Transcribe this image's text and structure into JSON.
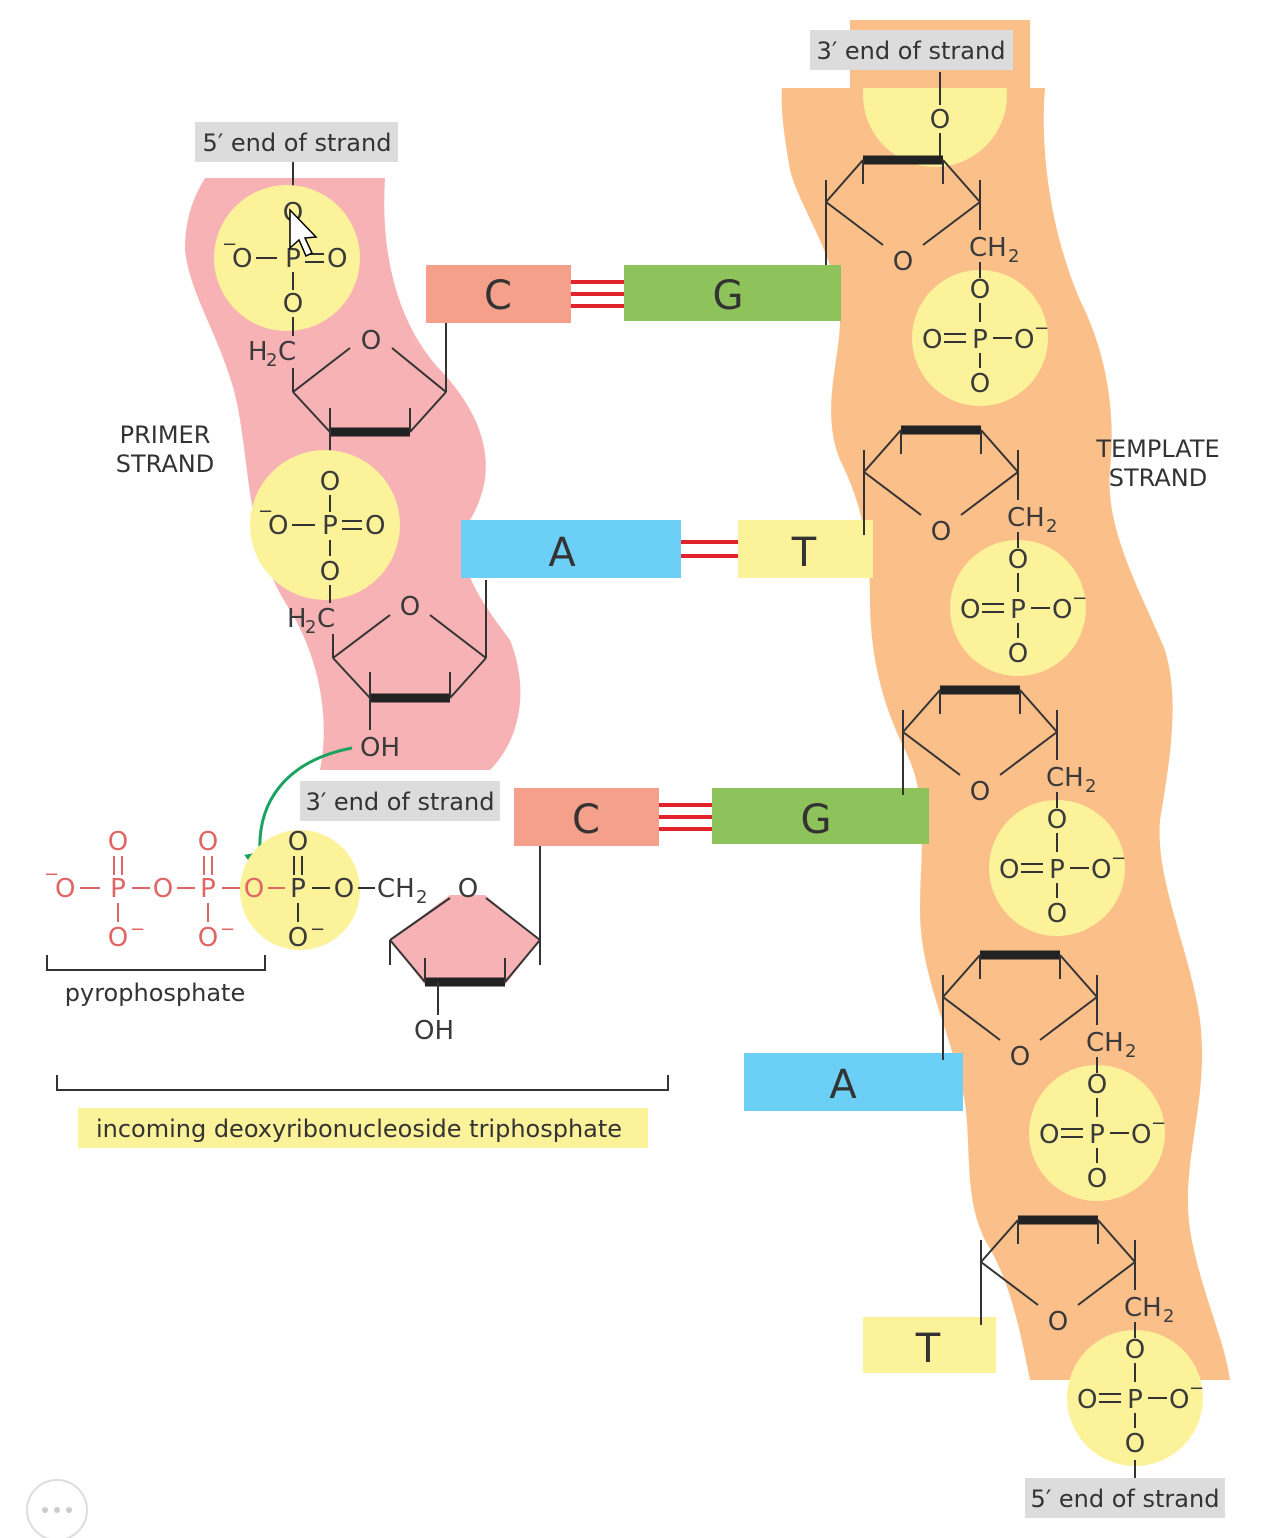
{
  "labels": {
    "primer_5end": "5′ end of strand",
    "template_3end": "3′ end of strand",
    "primer_3end": "3′ end of strand",
    "template_5end": "5′ end of strand",
    "primer_strand_line1": "PRIMER",
    "primer_strand_line2": "STRAND",
    "template_strand_line1": "TEMPLATE",
    "template_strand_line2": "STRAND",
    "pyrophosphate": "pyrophosphate",
    "incoming": "incoming deoxyribonucleoside triphosphate"
  },
  "atoms": {
    "O": "O",
    "P": "P",
    "OH": "OH",
    "H2": "H",
    "CH2": "CH",
    "sub2": "2",
    "C_": "C",
    "Ominus": "O",
    "minus": "−",
    "dash": "–",
    "eq": "="
  },
  "pairs": [
    {
      "left": "C",
      "right": "G",
      "bonds": 3
    },
    {
      "left": "A",
      "right": "T",
      "bonds": 2
    },
    {
      "left": "C",
      "right": "G",
      "bonds": 3
    }
  ],
  "template_unpaired": [
    "A",
    "T"
  ],
  "colors": {
    "primer_bg": "#f6b2b4",
    "template_bg": "#fbbf8a",
    "phosphate": "#fbf29a",
    "C": "#f4a08a",
    "G": "#8dc35a",
    "A": "#6ccff6",
    "T": "#fbf29a",
    "hbond": "#e2232c",
    "label_bg": "#dcdcdc",
    "incoming_label_bg": "#fbf29a",
    "arrow": "#1aa260"
  }
}
